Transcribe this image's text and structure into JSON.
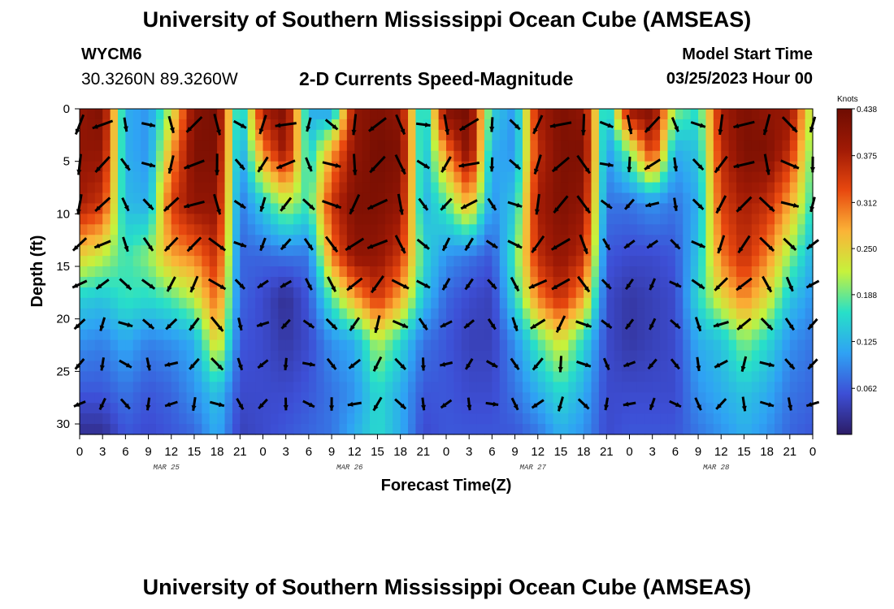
{
  "header": {
    "title": "University of Southern Mississippi Ocean Cube (AMSEAS)",
    "station": "WYCM6",
    "coords": "30.3260N  89.3260W",
    "subtitle": "2-D Currents Speed-Magnitude",
    "start_label": "Model Start Time",
    "start_value": "03/25/2023 Hour 00"
  },
  "footer": {
    "title": "University of Southern Mississippi Ocean Cube (AMSEAS)"
  },
  "chart_data": {
    "type": "heatmap",
    "title": "2-D Currents Speed-Magnitude",
    "xlabel": "Forecast Time(Z)",
    "ylabel": "Depth (ft)",
    "x_tick_labels": [
      "0",
      "3",
      "6",
      "9",
      "12",
      "15",
      "18",
      "21",
      "0",
      "3",
      "6",
      "9",
      "12",
      "15",
      "18",
      "21",
      "0",
      "3",
      "6",
      "9",
      "12",
      "15",
      "18",
      "21",
      "0",
      "3",
      "6",
      "9",
      "12",
      "15",
      "18",
      "21",
      "0"
    ],
    "x_range_hours": [
      0,
      96
    ],
    "day_labels": [
      {
        "hour": 12,
        "label": "MAR 25"
      },
      {
        "hour": 36,
        "label": "MAR 26"
      },
      {
        "hour": 60,
        "label": "MAR 27"
      },
      {
        "hour": 84,
        "label": "MAR 28"
      }
    ],
    "y_ticks": [
      0,
      5,
      10,
      15,
      20,
      25,
      30
    ],
    "y_range_ft": [
      0,
      31
    ],
    "y_inverted": true,
    "colorbar": {
      "unit": "Knots",
      "ticks": [
        "0.438",
        "0.375",
        "0.312",
        "0.250",
        "0.188",
        "0.125",
        "0.062"
      ],
      "range": [
        0,
        0.438
      ],
      "colors": [
        "#2c1c66",
        "#3d4fd6",
        "#2fa2f4",
        "#27e0c8",
        "#c6f23c",
        "#fbb337",
        "#e8480f",
        "#a01a05",
        "#6e0c02"
      ]
    },
    "speed_profiles_by_hour": [
      {
        "hour": 0,
        "speed_by_depth_ft": [
          0.4,
          0.4,
          0.38,
          0.25,
          0.15,
          0.1,
          0.06,
          0.02
        ]
      },
      {
        "hour": 3,
        "speed_by_depth_ft": [
          0.42,
          0.4,
          0.35,
          0.22,
          0.14,
          0.09,
          0.06,
          0.02
        ]
      },
      {
        "hour": 6,
        "speed_by_depth_ft": [
          0.12,
          0.12,
          0.13,
          0.17,
          0.17,
          0.12,
          0.08,
          0.06
        ]
      },
      {
        "hour": 9,
        "speed_by_depth_ft": [
          0.1,
          0.1,
          0.12,
          0.2,
          0.16,
          0.09,
          0.06,
          0.05
        ]
      },
      {
        "hour": 12,
        "speed_by_depth_ft": [
          0.22,
          0.28,
          0.34,
          0.28,
          0.18,
          0.1,
          0.07,
          0.06
        ]
      },
      {
        "hour": 15,
        "speed_by_depth_ft": [
          0.41,
          0.42,
          0.4,
          0.3,
          0.22,
          0.12,
          0.1,
          0.07
        ]
      },
      {
        "hour": 18,
        "speed_by_depth_ft": [
          0.43,
          0.42,
          0.4,
          0.36,
          0.32,
          0.26,
          0.14,
          0.12
        ]
      },
      {
        "hour": 21,
        "speed_by_depth_ft": [
          0.12,
          0.1,
          0.08,
          0.07,
          0.07,
          0.06,
          0.05,
          0.04
        ]
      },
      {
        "hour": 24,
        "speed_by_depth_ft": [
          0.38,
          0.3,
          0.15,
          0.07,
          0.05,
          0.05,
          0.05,
          0.05
        ]
      },
      {
        "hour": 27,
        "speed_by_depth_ft": [
          0.42,
          0.4,
          0.22,
          0.08,
          0.02,
          0.03,
          0.05,
          0.06
        ]
      },
      {
        "hour": 30,
        "speed_by_depth_ft": [
          0.12,
          0.14,
          0.17,
          0.08,
          0.06,
          0.05,
          0.06,
          0.07
        ]
      },
      {
        "hour": 33,
        "speed_by_depth_ft": [
          0.1,
          0.28,
          0.35,
          0.3,
          0.18,
          0.1,
          0.08,
          0.08
        ]
      },
      {
        "hour": 36,
        "speed_by_depth_ft": [
          0.4,
          0.4,
          0.42,
          0.4,
          0.28,
          0.12,
          0.1,
          0.12
        ]
      },
      {
        "hour": 39,
        "speed_by_depth_ft": [
          0.42,
          0.43,
          0.42,
          0.4,
          0.35,
          0.22,
          0.16,
          0.16
        ]
      },
      {
        "hour": 42,
        "speed_by_depth_ft": [
          0.4,
          0.42,
          0.4,
          0.35,
          0.28,
          0.16,
          0.12,
          0.12
        ]
      },
      {
        "hour": 45,
        "speed_by_depth_ft": [
          0.12,
          0.12,
          0.12,
          0.16,
          0.14,
          0.08,
          0.06,
          0.05
        ]
      },
      {
        "hour": 48,
        "speed_by_depth_ft": [
          0.42,
          0.3,
          0.18,
          0.1,
          0.07,
          0.06,
          0.06,
          0.06
        ]
      },
      {
        "hour": 51,
        "speed_by_depth_ft": [
          0.43,
          0.42,
          0.28,
          0.08,
          0.05,
          0.04,
          0.05,
          0.06
        ]
      },
      {
        "hour": 54,
        "speed_by_depth_ft": [
          0.15,
          0.12,
          0.1,
          0.06,
          0.04,
          0.04,
          0.05,
          0.06
        ]
      },
      {
        "hour": 57,
        "speed_by_depth_ft": [
          0.1,
          0.1,
          0.14,
          0.18,
          0.16,
          0.1,
          0.08,
          0.06
        ]
      },
      {
        "hour": 60,
        "speed_by_depth_ft": [
          0.38,
          0.36,
          0.38,
          0.36,
          0.3,
          0.18,
          0.12,
          0.08
        ]
      },
      {
        "hour": 63,
        "speed_by_depth_ft": [
          0.42,
          0.42,
          0.42,
          0.4,
          0.36,
          0.24,
          0.16,
          0.12
        ]
      },
      {
        "hour": 66,
        "speed_by_depth_ft": [
          0.4,
          0.42,
          0.4,
          0.36,
          0.28,
          0.16,
          0.12,
          0.1
        ]
      },
      {
        "hour": 69,
        "speed_by_depth_ft": [
          0.12,
          0.1,
          0.08,
          0.06,
          0.05,
          0.05,
          0.05,
          0.05
        ]
      },
      {
        "hour": 72,
        "speed_by_depth_ft": [
          0.4,
          0.2,
          0.08,
          0.05,
          0.03,
          0.03,
          0.05,
          0.06
        ]
      },
      {
        "hour": 75,
        "speed_by_depth_ft": [
          0.42,
          0.36,
          0.1,
          0.05,
          0.04,
          0.04,
          0.05,
          0.06
        ]
      },
      {
        "hour": 78,
        "speed_by_depth_ft": [
          0.2,
          0.12,
          0.08,
          0.06,
          0.05,
          0.05,
          0.05,
          0.06
        ]
      },
      {
        "hour": 81,
        "speed_by_depth_ft": [
          0.16,
          0.14,
          0.12,
          0.14,
          0.16,
          0.12,
          0.1,
          0.08
        ]
      },
      {
        "hour": 84,
        "speed_by_depth_ft": [
          0.38,
          0.36,
          0.34,
          0.3,
          0.24,
          0.14,
          0.12,
          0.1
        ]
      },
      {
        "hour": 87,
        "speed_by_depth_ft": [
          0.42,
          0.42,
          0.38,
          0.36,
          0.3,
          0.2,
          0.14,
          0.12
        ]
      },
      {
        "hour": 90,
        "speed_by_depth_ft": [
          0.4,
          0.42,
          0.36,
          0.3,
          0.24,
          0.16,
          0.12,
          0.1
        ]
      },
      {
        "hour": 93,
        "speed_by_depth_ft": [
          0.4,
          0.36,
          0.28,
          0.2,
          0.14,
          0.1,
          0.08,
          0.07
        ]
      },
      {
        "hour": 96,
        "speed_by_depth_ft": [
          0.2,
          0.18,
          0.16,
          0.12,
          0.1,
          0.08,
          0.07,
          0.06
        ]
      }
    ],
    "profile_depths_ft": [
      0,
      4,
      9,
      14,
      18,
      22,
      27,
      31
    ],
    "vectors_shown": true
  }
}
